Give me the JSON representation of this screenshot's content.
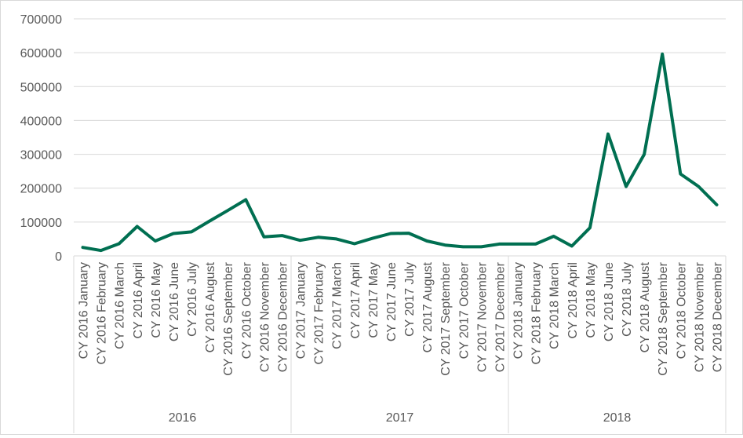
{
  "chart_data": {
    "type": "line",
    "title": "",
    "xlabel": "",
    "ylabel": "",
    "ylim": [
      0,
      700000
    ],
    "yticks": [
      "0",
      "100000",
      "200000",
      "300000",
      "400000",
      "500000",
      "600000",
      "700000"
    ],
    "grid": true,
    "legend": "none",
    "line_color": "#006F51",
    "groups": [
      {
        "label": "2016",
        "count": 12
      },
      {
        "label": "2017",
        "count": 12
      },
      {
        "label": "2018",
        "count": 12
      }
    ],
    "categories": [
      "CY 2016 January",
      "CY 2016 February",
      "CY 2016 March",
      "CY 2016 April",
      "CY 2016 May",
      "CY 2016 June",
      "CY 2016 July",
      "CY 2016 August",
      "CY 2016 September",
      "CY 2016 October",
      "CY 2016 November",
      "CY 2016 December",
      "CY 2017 January",
      "CY 2017 February",
      "CY 2017 March",
      "CY 2017 April",
      "CY 2017 May",
      "CY 2017 June",
      "CY 2017 July",
      "CY 2017 August",
      "CY 2017 September",
      "CY 2017 October",
      "CY 2017 November",
      "CY 2017 December",
      "CY 2018 January",
      "CY 2018 February",
      "CY 2018 March",
      "CY 2018 April",
      "CY 2018 May",
      "CY 2018 June",
      "CY 2018 July",
      "CY 2018 August",
      "CY 2018 September",
      "CY 2018 October",
      "CY 2018 November",
      "CY 2018 December"
    ],
    "values": [
      25000,
      16000,
      36000,
      87000,
      44000,
      66000,
      71000,
      103000,
      134000,
      166000,
      56000,
      60000,
      46000,
      55000,
      50000,
      36000,
      52000,
      66000,
      67000,
      44000,
      32000,
      27000,
      27000,
      35000,
      35000,
      35000,
      58000,
      29000,
      83000,
      360000,
      205000,
      300000,
      596000,
      242000,
      205000,
      151000
    ]
  }
}
